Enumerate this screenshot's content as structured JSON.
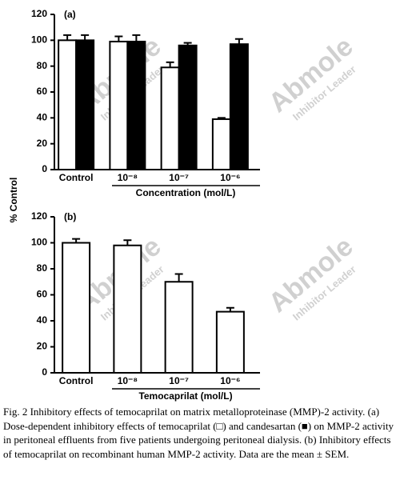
{
  "chart_data": [
    {
      "type": "bar",
      "panel_label": "(a)",
      "ylabel": "% Control",
      "xlabel": "Concentration (mol/L)",
      "categories": [
        "Control",
        "10⁻⁸",
        "10⁻⁷",
        "10⁻⁶"
      ],
      "series": [
        {
          "color": "#ffffff",
          "values": [
            100,
            99,
            79,
            39
          ],
          "errors": [
            4,
            4,
            4,
            1
          ]
        },
        {
          "color": "#000000",
          "values": [
            100,
            99,
            96,
            97
          ],
          "errors": [
            4,
            5,
            2,
            4
          ]
        }
      ],
      "ylim": [
        0,
        120
      ],
      "yticks": [
        0,
        20,
        40,
        60,
        80,
        100,
        120
      ]
    },
    {
      "type": "bar",
      "panel_label": "(b)",
      "xlabel": "Temocaprilat (mol/L)",
      "categories": [
        "Control",
        "10⁻⁸",
        "10⁻⁷",
        "10⁻⁶"
      ],
      "series": [
        {
          "color": "#ffffff",
          "values": [
            100,
            98,
            70,
            47
          ],
          "errors": [
            3,
            4,
            6,
            3
          ]
        }
      ],
      "ylim": [
        0,
        120
      ],
      "yticks": [
        0,
        20,
        40,
        60,
        80,
        100,
        120
      ]
    }
  ],
  "watermark": {
    "brand": "Abmole",
    "tagline": "Inhibitor Leader"
  },
  "caption": "Fig. 2 Inhibitory effects of temocaprilat on matrix metalloproteinase (MMP)-2 activity. (a) Dose-dependent inhibitory effects of temocaprilat (□) and candesartan (■) on MMP-2 activity in peritoneal effluents from five patients undergoing peritoneal dialysis. (b) Inhibitory effects of temocaprilat on recombinant human MMP-2 activity. Data are the mean ± SEM."
}
